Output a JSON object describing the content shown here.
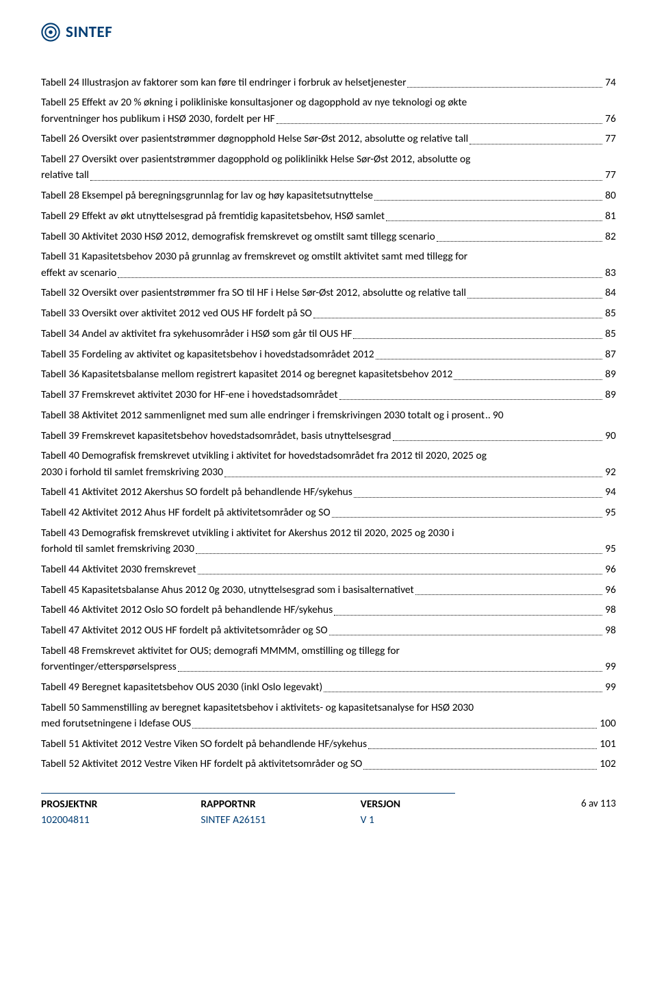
{
  "logo": {
    "text": "SINTEF",
    "color": "#003d73"
  },
  "toc": [
    {
      "text": "Tabell 24 Illustrasjon av faktorer som kan føre til endringer i forbruk av helsetjenester",
      "page": "74"
    },
    {
      "text": "Tabell 25 Effekt av 20 % økning i polikliniske konsultasjoner og dagopphold av nye teknologi og økte forventninger hos publikum i HSØ 2030, fordelt per HF",
      "page": "76",
      "multi": true,
      "line1": "Tabell 25 Effekt av 20 % økning i polikliniske konsultasjoner og dagopphold av nye teknologi og økte",
      "line2": "forventninger hos publikum i HSØ 2030, fordelt per HF"
    },
    {
      "text": "Tabell 26 Oversikt over pasientstrømmer døgnopphold Helse Sør-Øst 2012, absolutte og relative tall",
      "page": "77"
    },
    {
      "text": "Tabell 27 Oversikt over pasientstrømmer dagopphold og poliklinikk Helse Sør-Øst 2012, absolutte og relative tall",
      "page": "77",
      "multi": true,
      "line1": "Tabell 27 Oversikt over pasientstrømmer dagopphold og poliklinikk Helse Sør-Øst 2012, absolutte og",
      "line2": "relative tall"
    },
    {
      "text": "Tabell 28 Eksempel på beregningsgrunnlag for lav og høy kapasitetsutnyttelse",
      "page": "80"
    },
    {
      "text": "Tabell 29 Effekt av økt utnyttelsesgrad på fremtidig kapasitetsbehov, HSØ samlet",
      "page": "81"
    },
    {
      "text": "Tabell 30 Aktivitet 2030 HSØ 2012, demografisk fremskrevet og omstilt samt tillegg scenario",
      "page": "82"
    },
    {
      "text": "Tabell 31 Kapasitetsbehov 2030 på grunnlag av fremskrevet og omstilt aktivitet samt med tillegg for effekt av scenario",
      "page": "83",
      "multi": true,
      "line1": "Tabell 31 Kapasitetsbehov 2030 på grunnlag av fremskrevet og omstilt aktivitet samt med tillegg for",
      "line2": "effekt av scenario"
    },
    {
      "text": "Tabell 32 Oversikt over pasientstrømmer fra SO til HF i Helse Sør-Øst 2012, absolutte og relative tall",
      "page": "84"
    },
    {
      "text": "Tabell 33 Oversikt over aktivitet 2012 ved OUS HF fordelt på SO",
      "page": "85"
    },
    {
      "text": "Tabell 34 Andel av aktivitet fra sykehusområder i HSØ som går til OUS HF",
      "page": "85"
    },
    {
      "text": "Tabell 35 Fordeling av aktivitet og kapasitetsbehov i hovedstadsområdet 2012",
      "page": "87"
    },
    {
      "text": "Tabell 36 Kapasitetsbalanse mellom registrert kapasitet 2014 og beregnet kapasitetsbehov 2012",
      "page": "89"
    },
    {
      "text": "Tabell 37 Fremskrevet aktivitet 2030 for HF-ene i hovedstadsområdet",
      "page": "89"
    },
    {
      "text": "Tabell 38 Aktivitet 2012 sammenlignet med sum alle endringer i fremskrivingen 2030 totalt og i prosent",
      "page": "90",
      "tight": true
    },
    {
      "text": "Tabell 39 Fremskrevet kapasitetsbehov hovedstadsområdet, basis utnyttelsesgrad",
      "page": "90"
    },
    {
      "text": "Tabell 40 Demografisk fremskrevet utvikling i aktivitet for hovedstadsområdet fra 2012 til 2020, 2025 og 2030 i forhold til samlet fremskriving 2030",
      "page": "92",
      "multi": true,
      "line1": "Tabell 40 Demografisk fremskrevet utvikling i aktivitet for hovedstadsområdet fra 2012 til 2020, 2025 og",
      "line2": "2030 i forhold til samlet fremskriving 2030"
    },
    {
      "text": "Tabell 41 Aktivitet 2012 Akershus SO fordelt på behandlende HF/sykehus",
      "page": "94"
    },
    {
      "text": "Tabell 42 Aktivitet 2012 Ahus HF fordelt på aktivitetsområder og SO",
      "page": "95"
    },
    {
      "text": "Tabell 43 Demografisk fremskrevet utvikling i aktivitet for Akershus 2012 til 2020, 2025 og 2030 i forhold til samlet fremskriving 2030",
      "page": "95",
      "multi": true,
      "line1": "Tabell 43 Demografisk fremskrevet utvikling i aktivitet for Akershus 2012 til 2020, 2025 og 2030 i",
      "line2": "forhold til samlet fremskriving 2030"
    },
    {
      "text": "Tabell 44 Aktivitet 2030 fremskrevet",
      "page": "96"
    },
    {
      "text": "Tabell 45 Kapasitetsbalanse Ahus 2012 0g 2030, utnyttelsesgrad som i basisalternativet",
      "page": "96"
    },
    {
      "text": "Tabell 46 Aktivitet 2012 Oslo SO fordelt på behandlende HF/sykehus",
      "page": "98"
    },
    {
      "text": "Tabell 47 Aktivitet 2012 OUS HF fordelt på aktivitetsområder og SO",
      "page": "98"
    },
    {
      "text": "Tabell 48 Fremskrevet aktivitet for OUS; demografi MMMM, omstilling og tillegg for forventinger/etterspørselspress",
      "page": "99",
      "multi": true,
      "line1": "Tabell 48 Fremskrevet aktivitet for OUS; demografi MMMM, omstilling og tillegg for",
      "line2": "forventinger/etterspørselspress"
    },
    {
      "text": "Tabell 49 Beregnet kapasitetsbehov OUS 2030 (inkl Oslo legevakt)",
      "page": "99"
    },
    {
      "text": "Tabell 50 Sammenstilling av beregnet kapasitetsbehov i aktivitets- og kapasitetsanalyse for HSØ 2030 med forutsetningene i Idefase OUS",
      "page": "100",
      "multi": true,
      "line1": "Tabell 50 Sammenstilling av beregnet kapasitetsbehov i aktivitets- og kapasitetsanalyse for HSØ 2030",
      "line2": "med forutsetningene i Idefase OUS"
    },
    {
      "text": "Tabell 51 Aktivitet 2012 Vestre Viken SO fordelt på behandlende HF/sykehus",
      "page": "101"
    },
    {
      "text": "Tabell 52 Aktivitet 2012 Vestre Viken HF fordelt på aktivitetsområder og SO",
      "page": "102"
    }
  ],
  "footer": {
    "col1_label": "PROSJEKTNR",
    "col1_val": "102004811",
    "col2_label": "RAPPORTNR",
    "col2_val": "SINTEF A26151",
    "col3_label": "VERSJON",
    "col3_val": "V 1",
    "page": "6 av 113",
    "label_color": "#003d73",
    "rule_color": "#003d73"
  }
}
